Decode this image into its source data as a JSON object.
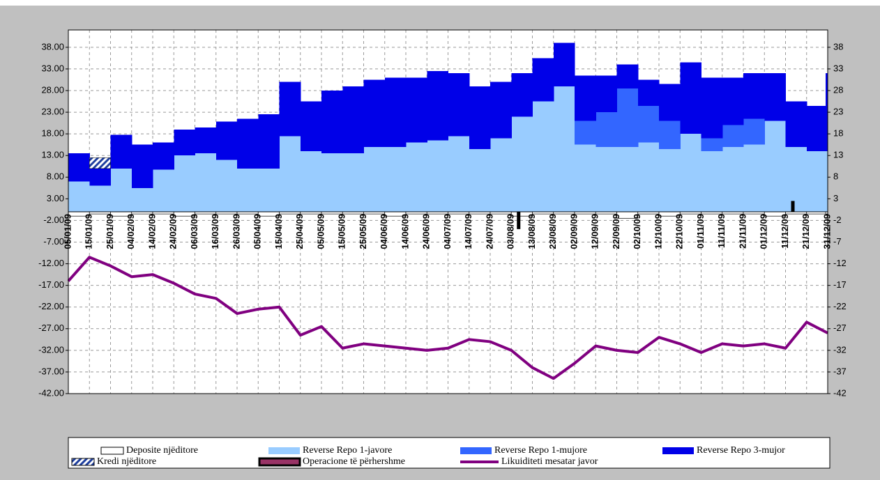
{
  "chart_data": {
    "type": "area",
    "categories": [
      "05/01/09",
      "15/01/09",
      "25/01/09",
      "04/02/09",
      "14/02/09",
      "24/02/09",
      "06/03/09",
      "16/03/09",
      "26/03/09",
      "05/04/09",
      "15/04/09",
      "25/04/09",
      "05/05/09",
      "15/05/09",
      "25/05/09",
      "04/06/09",
      "14/06/09",
      "24/06/09",
      "04/07/09",
      "14/07/09",
      "24/07/09",
      "03/08/09",
      "13/08/09",
      "23/08/09",
      "02/09/09",
      "12/09/09",
      "22/09/09",
      "02/10/09",
      "12/10/09",
      "22/10/09",
      "01/11/09",
      "11/11/09",
      "21/11/09",
      "01/12/09",
      "11/12/09",
      "21/12/09",
      "31/12/09"
    ],
    "series": [
      {
        "name": "Reverse Repo 1-javore",
        "color": "#99ccff",
        "kind": "stack",
        "values": [
          7,
          6,
          10,
          5.5,
          9.7,
          13,
          13.5,
          12,
          10,
          10,
          17.5,
          14,
          13.5,
          13.5,
          15,
          15,
          16,
          16.5,
          17.5,
          14.5,
          17,
          22,
          25.5,
          29,
          15.5,
          15,
          15,
          16,
          14.5,
          18,
          14,
          15,
          15.5,
          21,
          15,
          14,
          20
        ]
      },
      {
        "name": "Reverse Repo 1-mujore",
        "color": "#3366ff",
        "kind": "stack",
        "values": [
          0,
          0,
          0,
          0,
          0,
          0,
          0,
          0,
          0,
          0,
          0,
          0,
          0,
          0,
          0,
          0,
          0,
          0,
          0,
          0,
          0,
          0,
          0,
          0,
          5.5,
          8,
          13.5,
          8.5,
          6.5,
          0,
          3,
          5,
          6,
          0,
          0,
          0,
          0
        ]
      },
      {
        "name": "Reverse Repo 3-mujor",
        "color": "#0000e8",
        "kind": "stack",
        "values": [
          6.5,
          4,
          7.8,
          10,
          6.3,
          6,
          6,
          8.8,
          11.5,
          12.5,
          12.5,
          11.5,
          14.5,
          15.5,
          15.5,
          16,
          15,
          16,
          14.5,
          14.5,
          13,
          10,
          10,
          10,
          10.5,
          8.5,
          5.5,
          6,
          8.5,
          16.5,
          14,
          11,
          10.5,
          11,
          10.5,
          10.5,
          12
        ]
      },
      {
        "name": "Kredi njëditore",
        "color": "#1f3f9f",
        "kind": "hatch",
        "values": [
          0,
          2.5,
          0,
          0,
          0,
          0,
          0,
          0,
          0,
          0,
          0,
          0,
          0,
          0,
          0,
          0,
          0,
          0,
          0,
          0,
          0,
          0,
          0,
          0,
          0,
          0,
          0,
          0,
          0,
          0,
          0,
          0,
          0,
          0,
          0,
          0,
          0
        ]
      },
      {
        "name": "Deposite njëditore",
        "color": "#ffffff",
        "kind": "below",
        "values": [
          -1,
          -0.5,
          -1,
          -0.5,
          -0.5,
          -1,
          -0.5,
          -0.5,
          -0.5,
          -1,
          -0.5,
          -0.5,
          -0.5,
          -0.5,
          -0.5,
          -1,
          -0.5,
          -0.5,
          -0.5,
          -0.5,
          -0.5,
          -1,
          -0.5,
          -0.5,
          -0.5,
          -0.5,
          -1.5,
          -0.5,
          -1,
          -0.5,
          -0.5,
          -0.5,
          -0.5,
          -1,
          -0.5,
          -0.5,
          -0.5
        ]
      },
      {
        "name": "Operacione të përhershme",
        "color": "#000000",
        "kind": "bar",
        "values": [
          null,
          null,
          null,
          null,
          null,
          null,
          null,
          null,
          null,
          null,
          null,
          null,
          null,
          null,
          null,
          null,
          null,
          null,
          null,
          null,
          null,
          -4,
          null,
          null,
          null,
          null,
          null,
          null,
          null,
          null,
          null,
          null,
          null,
          null,
          2.5,
          null,
          null
        ]
      },
      {
        "name": "Likuiditeti mesatar javor",
        "color": "#800080",
        "kind": "line",
        "values": [
          -16,
          -10.5,
          -12.5,
          -15,
          -14.5,
          -16.5,
          -19,
          -20,
          -23.5,
          -22.5,
          -22,
          -28.5,
          -26.5,
          -31.5,
          -30.5,
          -31,
          -31.5,
          -32,
          -31.5,
          -29.5,
          -30,
          -32,
          -36,
          -38.5,
          -35,
          -31,
          -32,
          -32.5,
          -29,
          -30.5,
          -32.5,
          -30.5,
          -31,
          -30.5,
          -31.5,
          -25.5,
          -28
        ]
      }
    ],
    "ylim": [
      -42,
      42
    ],
    "yticks": [
      {
        "value": -42,
        "label": "-42.00"
      },
      {
        "value": -37,
        "label": "-37.00"
      },
      {
        "value": -32,
        "label": "-32.00"
      },
      {
        "value": -27,
        "label": "-27.00"
      },
      {
        "value": -22,
        "label": "-22.00"
      },
      {
        "value": -17,
        "label": "-17.00"
      },
      {
        "value": -12,
        "label": "-12.00"
      },
      {
        "value": -7,
        "label": "-7.00"
      },
      {
        "value": -2,
        "label": "-2.00"
      },
      {
        "value": 3,
        "label": "3.00"
      },
      {
        "value": 8,
        "label": "8.00"
      },
      {
        "value": 13,
        "label": "13.00"
      },
      {
        "value": 18,
        "label": "18.00"
      },
      {
        "value": 23,
        "label": "23.00"
      },
      {
        "value": 28,
        "label": "28.00"
      },
      {
        "value": 33,
        "label": "33.00"
      },
      {
        "value": 38,
        "label": "38.00"
      }
    ],
    "y2lim": [
      -42,
      42
    ],
    "y2ticks": [
      -42,
      -37,
      -32,
      -27,
      -22,
      -17,
      -12,
      -7,
      -2,
      3,
      8,
      13,
      18,
      23,
      28,
      33,
      38
    ],
    "grid": true
  }
}
